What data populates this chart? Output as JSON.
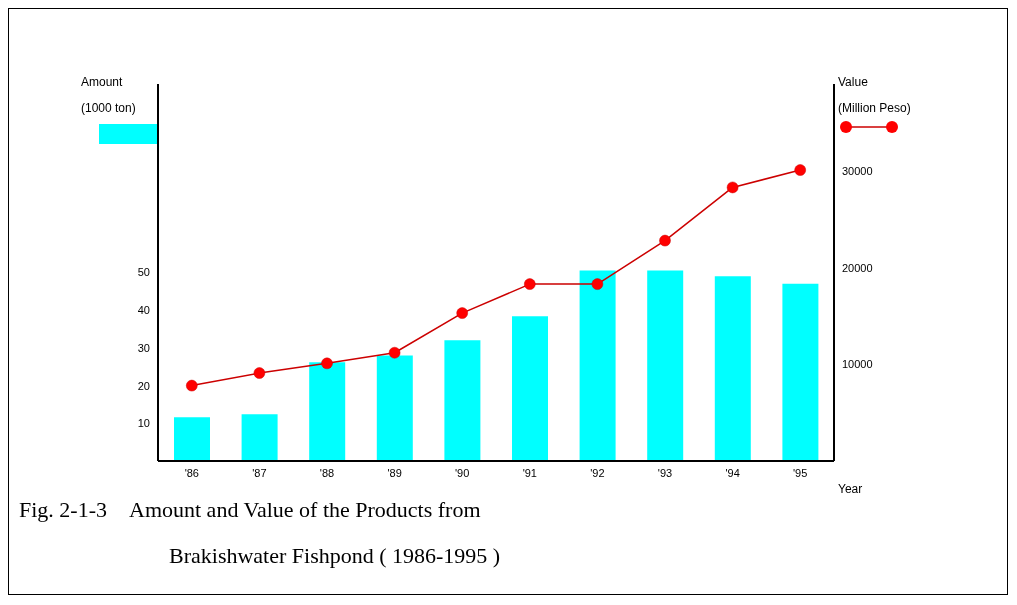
{
  "chart_data": {
    "type": "bar",
    "title": "Fig. 2-1-3　Amount and Value of the Products from\nBrakishwater Fishpond ( 1986-1995 )",
    "xlabel": "Year",
    "ylabel": "Amount\n(1000 ton)",
    "y2label": "Value\n(Million Peso)",
    "categories": [
      "'86",
      "'87",
      "'88",
      "'89",
      "'90",
      "'91",
      "'92",
      "'93",
      "'94",
      "'95"
    ],
    "series": [
      {
        "color": "#00ffff",
        "values": [
          11.6,
          12.4,
          26.2,
          28,
          32,
          38.4,
          50.5,
          50.5,
          49,
          47
        ]
      },
      {
        "type": "line",
        "axis": "y2",
        "color": "#cc0000",
        "marker": "circle",
        "values": [
          7800,
          9100,
          10100,
          11200,
          15300,
          18300,
          18300,
          22800,
          28300,
          30100
        ]
      }
    ],
    "ylim": [
      0,
      100
    ],
    "yticks": [
      10,
      20,
      30,
      40,
      50
    ],
    "y2lim": [
      0,
      39000
    ],
    "y2ticks": [
      10000,
      20000,
      30000
    ],
    "grid": false
  }
}
